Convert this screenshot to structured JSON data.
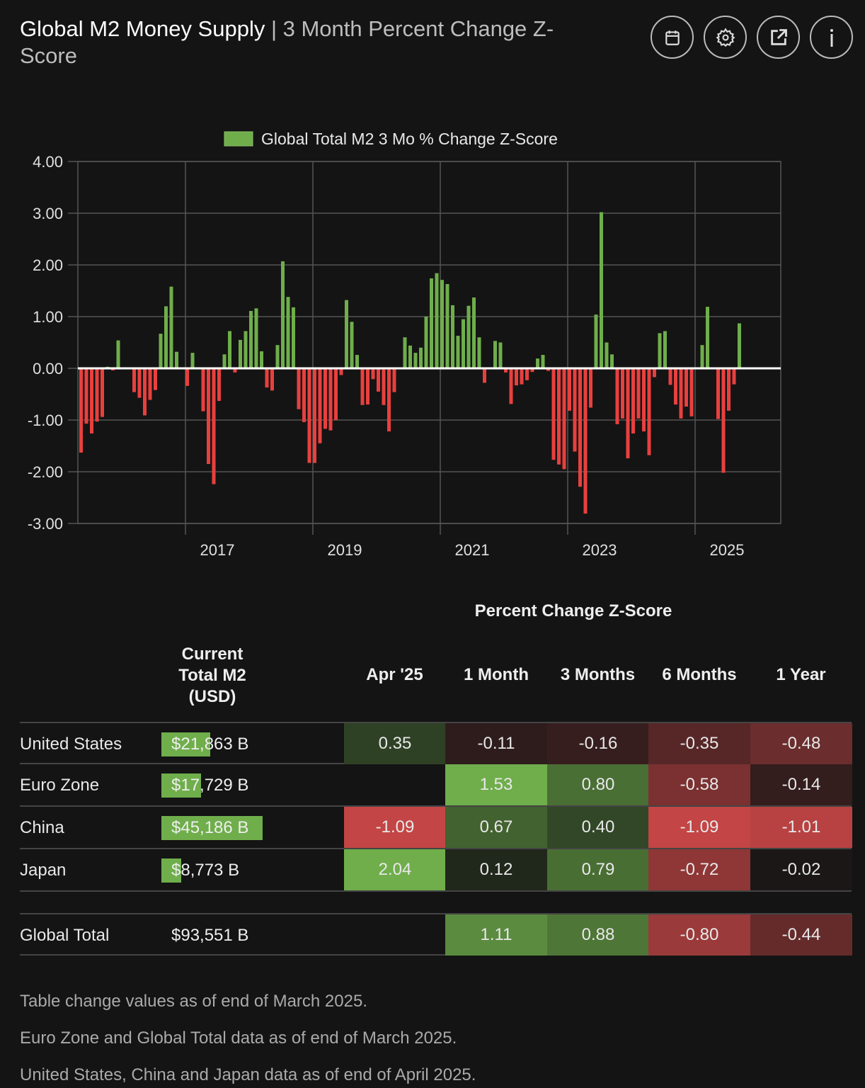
{
  "header": {
    "title": "Global M2 Money Supply",
    "subtitle": "| 3 Month Percent Change Z-Score",
    "icons": [
      "calendar-icon",
      "gear-icon",
      "external-link-icon",
      "info-icon"
    ]
  },
  "colors": {
    "positive": "#6fae4b",
    "negative": "#e8403e",
    "zero_line": "#ffffff",
    "grid": "#555555"
  },
  "chart_data": {
    "type": "bar",
    "title": "",
    "legend": {
      "label": "Global Total M2 3 Mo % Change Z-Score",
      "placement": "top-center"
    },
    "ylim": [
      -3,
      4
    ],
    "yticks": [
      "4.00",
      "3.00",
      "2.00",
      "1.00",
      "0.00",
      "-1.00",
      "-2.00",
      "-3.00"
    ],
    "xticks": [
      {
        "label": "2017",
        "index": 26
      },
      {
        "label": "2019",
        "index": 50
      },
      {
        "label": "2021",
        "index": 74
      },
      {
        "label": "2023",
        "index": 98
      },
      {
        "label": "2025",
        "index": 122
      }
    ],
    "frequency": "monthly",
    "values": [
      -1.63,
      -1.07,
      -1.26,
      -1.03,
      -0.94,
      0.03,
      -0.04,
      0.54,
      0,
      0,
      -0.46,
      -0.57,
      -0.91,
      -0.61,
      -0.42,
      0.67,
      1.2,
      1.58,
      0.32,
      0,
      -0.34,
      0.3,
      0,
      -0.83,
      -1.85,
      -2.24,
      -0.63,
      0.27,
      0.72,
      -0.08,
      0.55,
      0.72,
      1.11,
      1.16,
      0.33,
      -0.37,
      -0.43,
      0.45,
      2.07,
      1.38,
      1.18,
      -0.79,
      -1.04,
      -1.83,
      -1.83,
      -1.45,
      -1.17,
      -1.2,
      -1.0,
      -0.13,
      1.32,
      0.9,
      0.26,
      -0.71,
      -0.7,
      -0.21,
      -0.45,
      -0.71,
      -1.22,
      -0.46,
      0.02,
      0.6,
      0.44,
      0.3,
      0.4,
      1.0,
      1.74,
      1.84,
      1.71,
      1.63,
      1.22,
      0.63,
      0.95,
      1.21,
      1.37,
      0.6,
      -0.28,
      0,
      0.53,
      0.5,
      -0.08,
      -0.69,
      -0.33,
      -0.31,
      -0.23,
      -0.07,
      0.19,
      0.26,
      -0.05,
      -1.77,
      -1.86,
      -1.95,
      -0.82,
      -1.61,
      -2.29,
      -2.81,
      -0.76,
      1.04,
      3.02,
      0.5,
      0.27,
      -1.08,
      -0.97,
      -1.74,
      -1.26,
      -0.97,
      -1.22,
      -1.68,
      -0.17,
      0.68,
      0.72,
      -0.32,
      -0.7,
      -0.97,
      -0.74,
      -0.93,
      0,
      0.45,
      1.19,
      0,
      -0.98,
      -2.02,
      -0.82,
      -0.31,
      0.87
    ]
  },
  "table": {
    "group_header": "Percent Change Z-Score",
    "columns": [
      "Current Total M2 (USD)",
      "Apr '25",
      "1 Month",
      "3 Months",
      "6 Months",
      "1 Year"
    ],
    "m2_header_lines": [
      "Current",
      "Total M2",
      "(USD)"
    ],
    "rows": [
      {
        "name": "United States",
        "m2": "$21,863 B",
        "m2_value": 21863,
        "values": [
          "0.35",
          "-0.11",
          "-0.16",
          "-0.35",
          "-0.48"
        ]
      },
      {
        "name": "Euro Zone",
        "m2": "$17,729 B",
        "m2_value": 17729,
        "values": [
          null,
          "1.53",
          "0.80",
          "-0.58",
          "-0.14"
        ]
      },
      {
        "name": "China",
        "m2": "$45,186 B",
        "m2_value": 45186,
        "values": [
          "-1.09",
          "0.67",
          "0.40",
          "-1.09",
          "-1.01"
        ]
      },
      {
        "name": "Japan",
        "m2": "$8,773 B",
        "m2_value": 8773,
        "values": [
          "2.04",
          "0.12",
          "0.79",
          "-0.72",
          "-0.02"
        ]
      }
    ],
    "total": {
      "name": "Global Total",
      "m2": "$93,551 B",
      "values": [
        null,
        "1.11",
        "0.88",
        "-0.80",
        "-0.44"
      ]
    }
  },
  "notes": [
    "Table change values as of end of March 2025.",
    "Euro Zone and Global Total data as of end of March 2025.",
    "United States, China and Japan data as of end of April 2025."
  ]
}
